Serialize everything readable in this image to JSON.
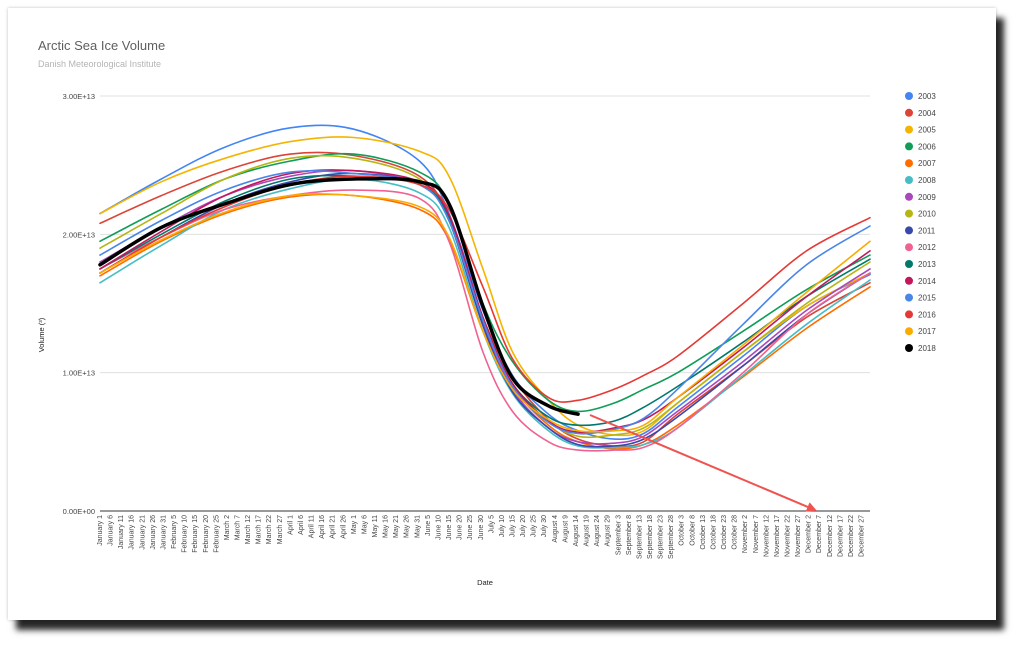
{
  "chart_data": {
    "type": "line",
    "title": "Arctic Sea Ice Volume",
    "subtitle": "Danish Meteorological Institute",
    "xlabel": "Date",
    "ylabel": "Volume (³)",
    "ylim": [
      0,
      30000000000000
    ],
    "yticks": [
      "0.00E+00",
      "1.00E+13",
      "2.00E+13",
      "3.00E+13"
    ],
    "x_tick_labels": [
      "January 1",
      "January 6",
      "January 11",
      "January 16",
      "January 21",
      "January 26",
      "January 31",
      "February 5",
      "February 10",
      "February 15",
      "February 20",
      "February 25",
      "March 2",
      "March 7",
      "March 12",
      "March 17",
      "March 22",
      "March 27",
      "April 1",
      "April 6",
      "April 11",
      "April 16",
      "April 21",
      "April 26",
      "May 1",
      "May 6",
      "May 11",
      "May 16",
      "May 21",
      "May 26",
      "May 31",
      "June 5",
      "June 10",
      "June 15",
      "June 20",
      "June 25",
      "June 30",
      "July 5",
      "July 10",
      "July 15",
      "July 20",
      "July 25",
      "July 30",
      "August 4",
      "August 9",
      "August 14",
      "August 19",
      "August 24",
      "August 29",
      "September 3",
      "September 8",
      "September 13",
      "September 18",
      "September 23",
      "September 28",
      "October 3",
      "October 8",
      "October 13",
      "October 18",
      "October 23",
      "October 28",
      "November 2",
      "November 7",
      "November 12",
      "November 17",
      "November 22",
      "November 27",
      "December 2",
      "December 7",
      "December 12",
      "December 17",
      "December 22",
      "December 27"
    ],
    "legend_position": "right",
    "grid": true,
    "annotation": "red arrow pointing from the late-August minimum toward December 2",
    "series_days": [
      1,
      30,
      60,
      91,
      121,
      152,
      166,
      182,
      196,
      213,
      227,
      244,
      258,
      274,
      305,
      335,
      365
    ],
    "series": [
      {
        "name": "2003",
        "color": "#4285f4",
        "values": [
          21500000000000.0,
          24000000000000.0,
          26300000000000.0,
          27700000000000.0,
          27600000000000.0,
          25300000000000.0,
          21500000000000.0,
          14500000000000.0,
          9800000000000.0,
          7000000000000.0,
          5800000000000.0,
          5200000000000.0,
          5600000000000.0,
          7500000000000.0,
          11200000000000.0,
          14800000000000.0,
          17100000000000.0
        ]
      },
      {
        "name": "2004",
        "color": "#db4437",
        "values": [
          20800000000000.0,
          22800000000000.0,
          24600000000000.0,
          25800000000000.0,
          25700000000000.0,
          24200000000000.0,
          21200000000000.0,
          14000000000000.0,
          9700000000000.0,
          6600000000000.0,
          5200000000000.0,
          4700000000000.0,
          5000000000000.0,
          7000000000000.0,
          10500000000000.0,
          14000000000000.0,
          16500000000000.0
        ]
      },
      {
        "name": "2005",
        "color": "#f4b400",
        "values": [
          21500000000000.0,
          23800000000000.0,
          25500000000000.0,
          26700000000000.0,
          27000000000000.0,
          26000000000000.0,
          24200000000000.0,
          17500000000000.0,
          11500000000000.0,
          8000000000000.0,
          6200000000000.0,
          5500000000000.0,
          5800000000000.0,
          7800000000000.0,
          11500000000000.0,
          14800000000000.0,
          17200000000000.0
        ]
      },
      {
        "name": "2006",
        "color": "#0f9d58",
        "values": [
          19500000000000.0,
          21800000000000.0,
          24000000000000.0,
          25300000000000.0,
          25800000000000.0,
          24500000000000.0,
          22200000000000.0,
          15000000000000.0,
          10800000000000.0,
          8000000000000.0,
          7200000000000.0,
          7800000000000.0,
          8800000000000.0,
          10000000000000.0,
          13000000000000.0,
          16000000000000.0,
          18500000000000.0
        ]
      },
      {
        "name": "2007",
        "color": "#ff6d00",
        "values": [
          17000000000000.0,
          19500000000000.0,
          21500000000000.0,
          22700000000000.0,
          22800000000000.0,
          21800000000000.0,
          19600000000000.0,
          13000000000000.0,
          9000000000000.0,
          6200000000000.0,
          5000000000000.0,
          4500000000000.0,
          4800000000000.0,
          6200000000000.0,
          9700000000000.0,
          13200000000000.0,
          16200000000000.0
        ]
      },
      {
        "name": "2008",
        "color": "#46bdc6",
        "values": [
          16500000000000.0,
          19200000000000.0,
          21800000000000.0,
          23300000000000.0,
          24000000000000.0,
          23000000000000.0,
          20500000000000.0,
          13000000000000.0,
          8500000000000.0,
          5800000000000.0,
          4700000000000.0,
          4600000000000.0,
          4800000000000.0,
          6000000000000.0,
          9800000000000.0,
          13500000000000.0,
          16700000000000.0
        ]
      },
      {
        "name": "2009",
        "color": "#ab47bc",
        "values": [
          18000000000000.0,
          20500000000000.0,
          22800000000000.0,
          24200000000000.0,
          24600000000000.0,
          23600000000000.0,
          21000000000000.0,
          13500000000000.0,
          8800000000000.0,
          6000000000000.0,
          5000000000000.0,
          4900000000000.0,
          5400000000000.0,
          7200000000000.0,
          10800000000000.0,
          14500000000000.0,
          17500000000000.0
        ]
      },
      {
        "name": "2010",
        "color": "#b5b514",
        "values": [
          19000000000000.0,
          21500000000000.0,
          24000000000000.0,
          25500000000000.0,
          25500000000000.0,
          24000000000000.0,
          21000000000000.0,
          13800000000000.0,
          9200000000000.0,
          6500000000000.0,
          5400000000000.0,
          5500000000000.0,
          6000000000000.0,
          7800000000000.0,
          11500000000000.0,
          15000000000000.0,
          18000000000000.0
        ]
      },
      {
        "name": "2011",
        "color": "#3949ab",
        "values": [
          17200000000000.0,
          19800000000000.0,
          22200000000000.0,
          23800000000000.0,
          24400000000000.0,
          23600000000000.0,
          21000000000000.0,
          13400000000000.0,
          8600000000000.0,
          6000000000000.0,
          4800000000000.0,
          4700000000000.0,
          5200000000000.0,
          6800000000000.0,
          10500000000000.0,
          14200000000000.0,
          17200000000000.0
        ]
      },
      {
        "name": "2012",
        "color": "#f06292",
        "values": [
          17500000000000.0,
          19800000000000.0,
          21800000000000.0,
          22800000000000.0,
          23200000000000.0,
          22600000000000.0,
          19500000000000.0,
          11500000000000.0,
          7200000000000.0,
          5000000000000.0,
          4400000000000.0,
          4400000000000.0,
          4600000000000.0,
          6000000000000.0,
          10000000000000.0,
          14200000000000.0,
          17200000000000.0
        ]
      },
      {
        "name": "2013",
        "color": "#00796b",
        "values": [
          17500000000000.0,
          20000000000000.0,
          22400000000000.0,
          24000000000000.0,
          24200000000000.0,
          23600000000000.0,
          21200000000000.0,
          13800000000000.0,
          9200000000000.0,
          6800000000000.0,
          6200000000000.0,
          6500000000000.0,
          7500000000000.0,
          9000000000000.0,
          12200000000000.0,
          15500000000000.0,
          18200000000000.0
        ]
      },
      {
        "name": "2014",
        "color": "#c2185b",
        "values": [
          17500000000000.0,
          20200000000000.0,
          22800000000000.0,
          24400000000000.0,
          24600000000000.0,
          23800000000000.0,
          21400000000000.0,
          14000000000000.0,
          9200000000000.0,
          6500000000000.0,
          5700000000000.0,
          6000000000000.0,
          6600000000000.0,
          8200000000000.0,
          11800000000000.0,
          15500000000000.0,
          18800000000000.0
        ]
      },
      {
        "name": "2015",
        "color": "#4a86e8",
        "values": [
          18500000000000.0,
          21000000000000.0,
          23200000000000.0,
          24500000000000.0,
          24400000000000.0,
          23600000000000.0,
          21000000000000.0,
          13800000000000.0,
          9000000000000.0,
          6400000000000.0,
          5600000000000.0,
          5900000000000.0,
          6700000000000.0,
          8800000000000.0,
          13500000000000.0,
          17800000000000.0,
          20600000000000.0
        ]
      },
      {
        "name": "2016",
        "color": "#e53935",
        "values": [
          17200000000000.0,
          19800000000000.0,
          22000000000000.0,
          23600000000000.0,
          24200000000000.0,
          23600000000000.0,
          21800000000000.0,
          16200000000000.0,
          11000000000000.0,
          8200000000000.0,
          8000000000000.0,
          8800000000000.0,
          9800000000000.0,
          11200000000000.0,
          15000000000000.0,
          18800000000000.0,
          21200000000000.0
        ]
      },
      {
        "name": "2017",
        "color": "#f9ab00",
        "values": [
          17200000000000.0,
          19600000000000.0,
          21600000000000.0,
          22800000000000.0,
          22800000000000.0,
          22000000000000.0,
          19800000000000.0,
          13000000000000.0,
          8800000000000.0,
          6600000000000.0,
          5800000000000.0,
          5800000000000.0,
          6200000000000.0,
          8200000000000.0,
          12000000000000.0,
          15800000000000.0,
          19500000000000.0
        ]
      },
      {
        "name": "2018",
        "color": "#000000",
        "values": [
          17800000000000.0,
          20500000000000.0,
          22200000000000.0,
          23600000000000.0,
          24000000000000.0,
          23800000000000.0,
          22200000000000.0,
          14800000000000.0,
          9600000000000.0,
          7600000000000.0,
          7000000000000.0
        ]
      }
    ]
  }
}
